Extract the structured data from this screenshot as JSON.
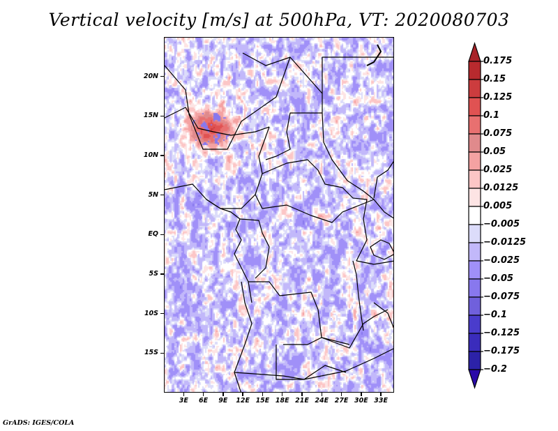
{
  "title": "Vertical velocity [m/s] at 500hPa, VT: 2020080703",
  "footer": "GrADS: IGES/COLA",
  "chart_data": {
    "type": "heatmap",
    "title": "Vertical velocity [m/s] at 500hPa, VT: 2020080703",
    "variable": "Vertical velocity",
    "units": "m/s",
    "level": "500hPa",
    "valid_time": "2020080703",
    "xlabel": "",
    "ylabel": "",
    "xlim": [
      0,
      35
    ],
    "ylim": [
      -20,
      25
    ],
    "x_ticks": [
      {
        "value": 3,
        "label": "3E"
      },
      {
        "value": 6,
        "label": "6E"
      },
      {
        "value": 9,
        "label": "9E"
      },
      {
        "value": 12,
        "label": "12E"
      },
      {
        "value": 15,
        "label": "15E"
      },
      {
        "value": 18,
        "label": "18E"
      },
      {
        "value": 21,
        "label": "21E"
      },
      {
        "value": 24,
        "label": "24E"
      },
      {
        "value": 27,
        "label": "27E"
      },
      {
        "value": 30,
        "label": "30E"
      },
      {
        "value": 33,
        "label": "33E"
      }
    ],
    "y_ticks": [
      {
        "value": 20,
        "label": "20N"
      },
      {
        "value": 15,
        "label": "15N"
      },
      {
        "value": 10,
        "label": "10N"
      },
      {
        "value": 5,
        "label": "5N"
      },
      {
        "value": 0,
        "label": "EQ"
      },
      {
        "value": -5,
        "label": "5S"
      },
      {
        "value": -10,
        "label": "10S"
      },
      {
        "value": -15,
        "label": "15S"
      }
    ],
    "colorbar": {
      "placement": "right",
      "extend": "both",
      "levels": [
        {
          "label": "0.175",
          "value": 0.175
        },
        {
          "label": "0.15",
          "value": 0.15
        },
        {
          "label": "0.125",
          "value": 0.125
        },
        {
          "label": "0.1",
          "value": 0.1
        },
        {
          "label": "0.075",
          "value": 0.075
        },
        {
          "label": "0.05",
          "value": 0.05
        },
        {
          "label": "0.025",
          "value": 0.025
        },
        {
          "label": "0.0125",
          "value": 0.0125
        },
        {
          "label": "0.005",
          "value": 0.005
        },
        {
          "label": "−0.005",
          "value": -0.005
        },
        {
          "label": "−0.0125",
          "value": -0.0125
        },
        {
          "label": "−0.025",
          "value": -0.025
        },
        {
          "label": "−0.05",
          "value": -0.05
        },
        {
          "label": "−0.075",
          "value": -0.075
        },
        {
          "label": "−0.1",
          "value": -0.1
        },
        {
          "label": "−0.125",
          "value": -0.125
        },
        {
          "label": "−0.175",
          "value": -0.175
        },
        {
          "label": "−0.2",
          "value": -0.2
        }
      ],
      "colors_top_to_bottom": [
        "#a82228",
        "#b82a2e",
        "#cc3c3e",
        "#e05252",
        "#e87070",
        "#e08a8c",
        "#f4a2a2",
        "#fcc6c6",
        "#fde4e4",
        "#ffffff",
        "#dcdcfa",
        "#c2b8fa",
        "#a090f8",
        "#8878ee",
        "#7060dc",
        "#4a3ccc",
        "#3a2cbc",
        "#2c22a8",
        "#2a0aa8"
      ]
    },
    "features": {
      "strong_ascent_max": "dark red cores near 13N 3-6E (Niger/Nigeria border)",
      "general_pattern": "mixed small-scale positive/negative cells over Central Africa, predominantly weak negative (blue) over the Atlantic and southern region"
    }
  }
}
